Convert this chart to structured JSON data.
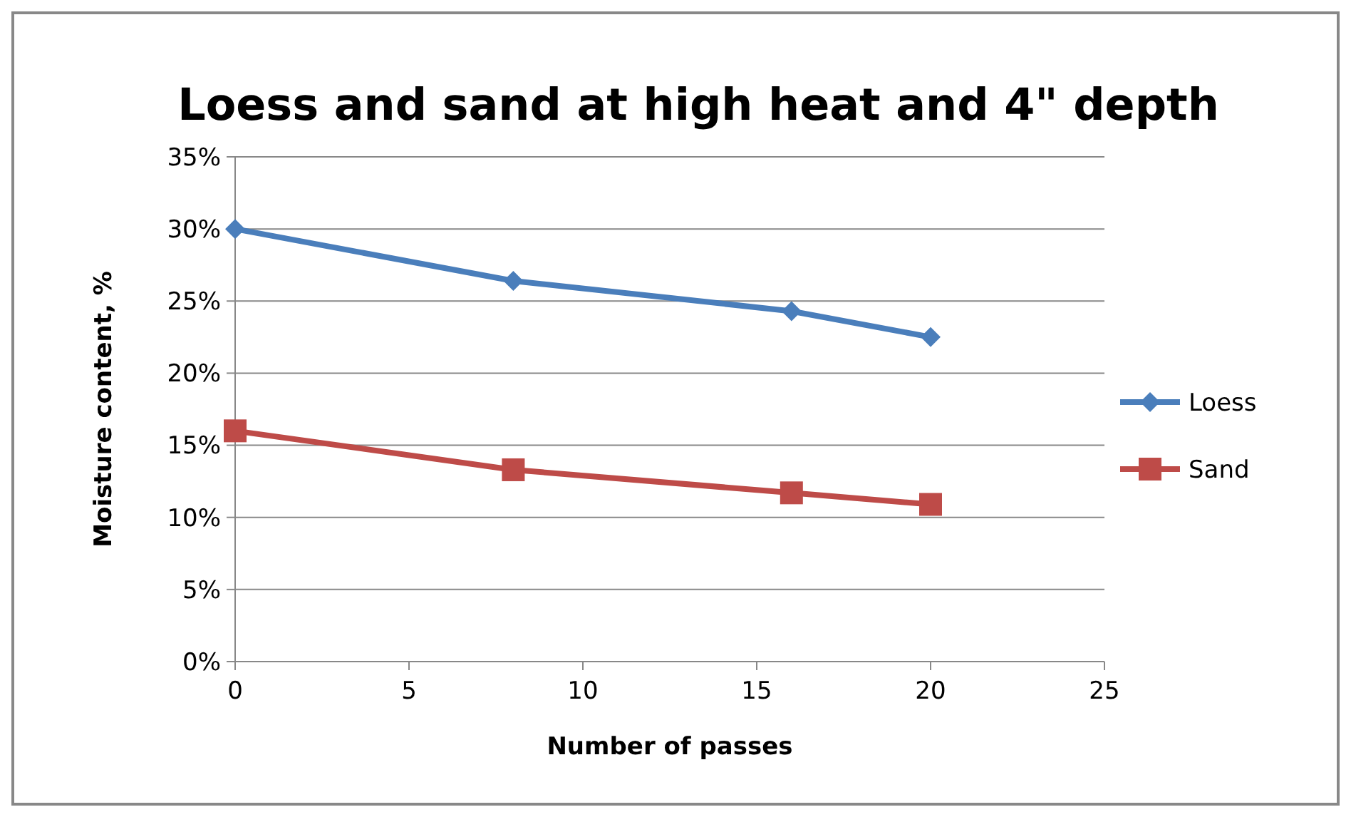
{
  "chart_data": {
    "type": "line",
    "title": "Loess and sand at high heat and 4\" depth",
    "xlabel": "Number of passes",
    "ylabel": "Moisture content, %",
    "x": [
      0,
      8,
      16,
      20
    ],
    "series": [
      {
        "name": "Loess",
        "color": "#4a7ebb",
        "marker": "diamond",
        "values": [
          30,
          26.4,
          24.3,
          22.5
        ]
      },
      {
        "name": "Sand",
        "color": "#be4b48",
        "marker": "square",
        "values": [
          16,
          13.3,
          11.7,
          10.9
        ]
      }
    ],
    "xlim": [
      0,
      25
    ],
    "xticks": [
      0,
      5,
      10,
      15,
      20,
      25
    ],
    "ylim": [
      0,
      35
    ],
    "yticks": [
      {
        "value": 0,
        "label": "0%"
      },
      {
        "value": 5,
        "label": "5%"
      },
      {
        "value": 10,
        "label": "10%"
      },
      {
        "value": 15,
        "label": "15%"
      },
      {
        "value": 20,
        "label": "20%"
      },
      {
        "value": 25,
        "label": "25%"
      },
      {
        "value": 30,
        "label": "30%"
      },
      {
        "value": 35,
        "label": "35%"
      }
    ],
    "grid": "y",
    "legend": "right",
    "line_style": "solid"
  }
}
